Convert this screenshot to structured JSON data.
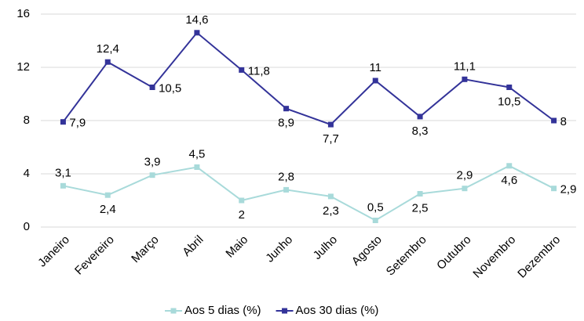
{
  "chart_data": {
    "type": "line",
    "categories": [
      "Janeiro",
      "Fevereiro",
      "Março",
      "Abril",
      "Maio",
      "Junho",
      "Julho",
      "Agosto",
      "Setembro",
      "Outubro",
      "Novembro",
      "Dezembro"
    ],
    "series": [
      {
        "name": "Aos 5 dias (%)",
        "color": "#a8dada",
        "values": [
          3.1,
          2.4,
          3.9,
          4.5,
          2,
          2.8,
          2.3,
          0.5,
          2.5,
          2.9,
          4.6,
          2.9
        ],
        "value_labels": [
          "3,1",
          "2,4",
          "3,9",
          "4,5",
          "2",
          "2,8",
          "2,3",
          "0,5",
          "2,5",
          "2,9",
          "4,6",
          "2,9"
        ]
      },
      {
        "name": "Aos 30 dias (%)",
        "color": "#333399",
        "values": [
          7.9,
          12.4,
          10.5,
          14.6,
          11.8,
          8.9,
          7.7,
          11,
          8.3,
          11.1,
          10.5,
          8
        ],
        "value_labels": [
          "7,9",
          "12,4",
          "10,5",
          "14,6",
          "11,8",
          "8,9",
          "7,7",
          "11",
          "8,3",
          "11,1",
          "10,5",
          "8"
        ]
      }
    ],
    "ylim": [
      0,
      16
    ],
    "yticks": [
      0,
      4,
      8,
      12,
      16
    ],
    "grid": true,
    "legend": "bottom"
  }
}
